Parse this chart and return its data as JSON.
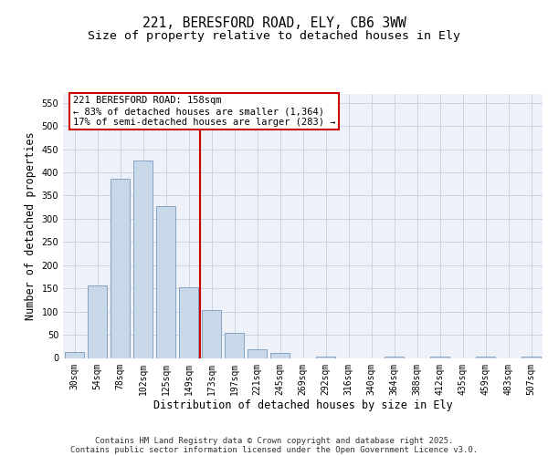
{
  "title_line1": "221, BERESFORD ROAD, ELY, CB6 3WW",
  "title_line2": "Size of property relative to detached houses in Ely",
  "xlabel": "Distribution of detached houses by size in Ely",
  "ylabel": "Number of detached properties",
  "categories": [
    "30sqm",
    "54sqm",
    "78sqm",
    "102sqm",
    "125sqm",
    "149sqm",
    "173sqm",
    "197sqm",
    "221sqm",
    "245sqm",
    "269sqm",
    "292sqm",
    "316sqm",
    "340sqm",
    "364sqm",
    "388sqm",
    "412sqm",
    "435sqm",
    "459sqm",
    "483sqm",
    "507sqm"
  ],
  "values": [
    13,
    157,
    386,
    425,
    328,
    153,
    103,
    55,
    18,
    10,
    0,
    3,
    0,
    0,
    3,
    0,
    3,
    0,
    3,
    0,
    3
  ],
  "bar_color": "#c8d8e8",
  "bar_edge_color": "#7799bb",
  "vline_color": "#cc0000",
  "annotation_text": "221 BERESFORD ROAD: 158sqm\n← 83% of detached houses are smaller (1,364)\n17% of semi-detached houses are larger (283) →",
  "annotation_box_color": "#ffffff",
  "annotation_box_edge": "#cc0000",
  "ylim": [
    0,
    570
  ],
  "yticks": [
    0,
    50,
    100,
    150,
    200,
    250,
    300,
    350,
    400,
    450,
    500,
    550
  ],
  "grid_color": "#c8d4e4",
  "background_color": "#eef2f8",
  "footer_line1": "Contains HM Land Registry data © Crown copyright and database right 2025.",
  "footer_line2": "Contains public sector information licensed under the Open Government Licence v3.0.",
  "title_fontsize": 10.5,
  "subtitle_fontsize": 9.5,
  "tick_fontsize": 7,
  "annotation_fontsize": 7.5,
  "xlabel_fontsize": 8.5,
  "ylabel_fontsize": 8.5,
  "footer_fontsize": 6.5
}
